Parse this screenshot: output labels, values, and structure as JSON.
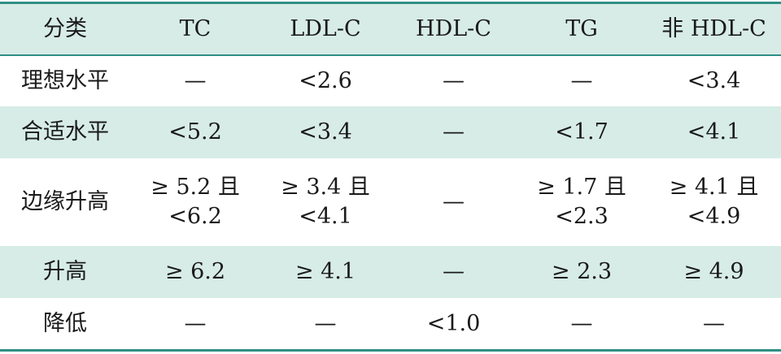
{
  "table": {
    "headers": [
      "分类",
      "TC",
      "LDL-C",
      "HDL-C",
      "TG",
      "非 HDL-C"
    ],
    "rows": [
      {
        "category": "理想水平",
        "tc": [
          "—"
        ],
        "ldl": [
          "<2.6"
        ],
        "hdl": [
          "—"
        ],
        "tg": [
          "—"
        ],
        "nonhdl": [
          "<3.4"
        ]
      },
      {
        "category": "合适水平",
        "tc": [
          "<5.2"
        ],
        "ldl": [
          "<3.4"
        ],
        "hdl": [
          "—"
        ],
        "tg": [
          "<1.7"
        ],
        "nonhdl": [
          "<4.1"
        ]
      },
      {
        "category": "边缘升高",
        "tc": [
          "≥ 5.2 且",
          "<6.2"
        ],
        "ldl": [
          "≥ 3.4 且",
          "<4.1"
        ],
        "hdl": [
          "—"
        ],
        "tg": [
          "≥ 1.7 且",
          "<2.3"
        ],
        "nonhdl": [
          "≥ 4.1 且",
          "<4.9"
        ]
      },
      {
        "category": "升高",
        "tc": [
          "≥ 6.2"
        ],
        "ldl": [
          "≥ 4.1"
        ],
        "hdl": [
          "—"
        ],
        "tg": [
          "≥ 2.3"
        ],
        "nonhdl": [
          "≥ 4.9"
        ]
      },
      {
        "category": "降低",
        "tc": [
          "—"
        ],
        "ldl": [
          "—"
        ],
        "hdl": [
          "<1.0"
        ],
        "tg": [
          "—"
        ],
        "nonhdl": [
          "—"
        ]
      }
    ]
  },
  "colors": {
    "rule": "#2f8f86",
    "shade": "#d7ece7"
  }
}
